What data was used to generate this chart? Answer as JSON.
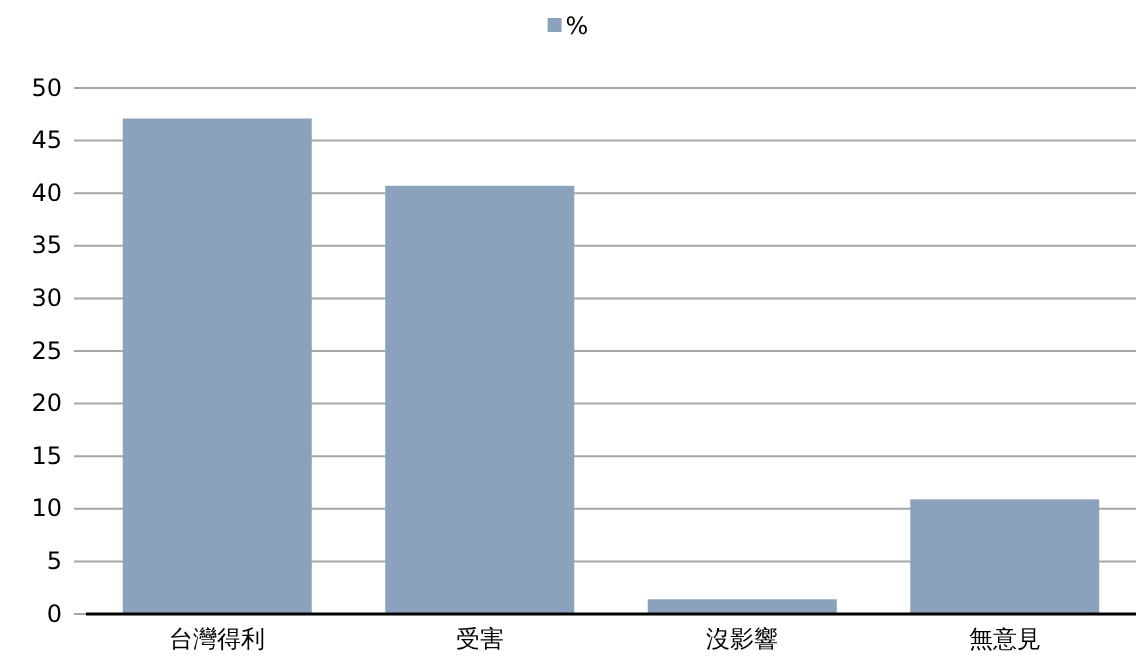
{
  "chart_data": {
    "type": "bar",
    "categories": [
      "台灣得利",
      "受害",
      "沒影響",
      "無意見"
    ],
    "series": [
      {
        "name": "%",
        "color": "#8ba2bc",
        "values": [
          47.1,
          40.7,
          1.4,
          10.9
        ]
      }
    ],
    "ylim": [
      0,
      50
    ],
    "yticks": [
      0,
      5,
      10,
      15,
      20,
      25,
      30,
      35,
      40,
      45,
      50
    ],
    "grid": "y",
    "legend": "top"
  }
}
